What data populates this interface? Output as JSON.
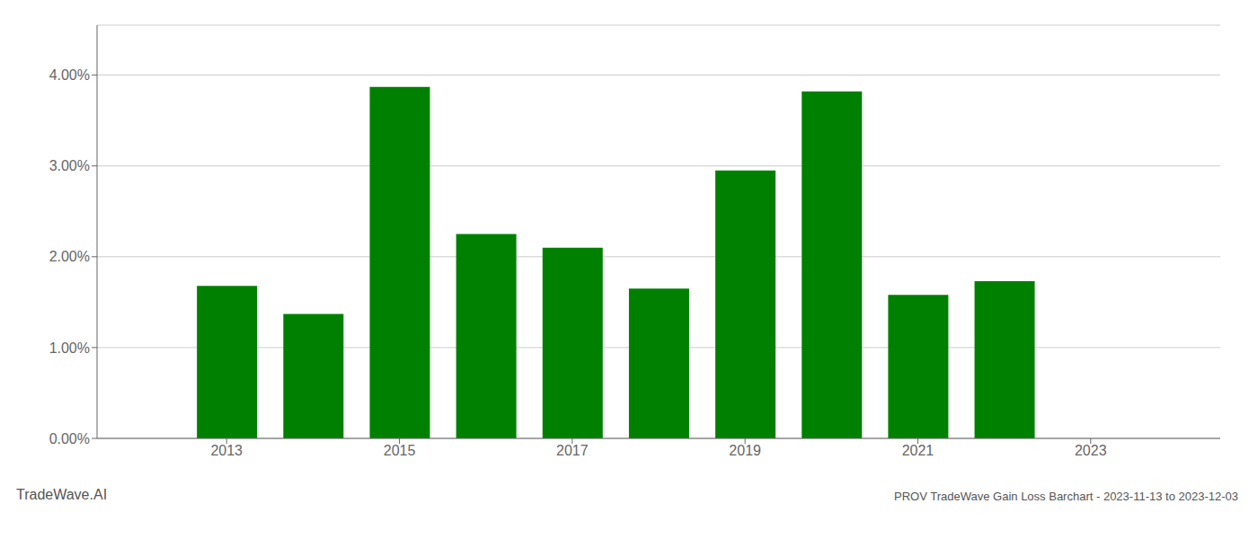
{
  "chart_data": {
    "type": "bar",
    "title": "PROV TradeWave Gain Loss Barchart - 2023-11-13 to 2023-12-03",
    "annotations": [
      "TradeWave.AI"
    ],
    "x": [
      2013,
      2014,
      2015,
      2016,
      2017,
      2018,
      2019,
      2020,
      2021,
      2022
    ],
    "values": [
      0.0168,
      0.0137,
      0.0387,
      0.0225,
      0.021,
      0.0165,
      0.0295,
      0.0382,
      0.0158,
      0.0173
    ],
    "color": "#008000",
    "xlim": [
      2011.5,
      2024.5
    ],
    "xticks": [
      2013,
      2015,
      2017,
      2019,
      2021,
      2023
    ],
    "ylim": [
      0,
      0.0455
    ],
    "yticks": [
      {
        "value": 0,
        "label": "0.00%"
      },
      {
        "value": 0.01,
        "label": "1.00%"
      },
      {
        "value": 0.02,
        "label": "2.00%"
      },
      {
        "value": 0.03,
        "label": "3.00%"
      },
      {
        "value": 0.04,
        "label": "4.00%"
      }
    ],
    "grid": true
  }
}
